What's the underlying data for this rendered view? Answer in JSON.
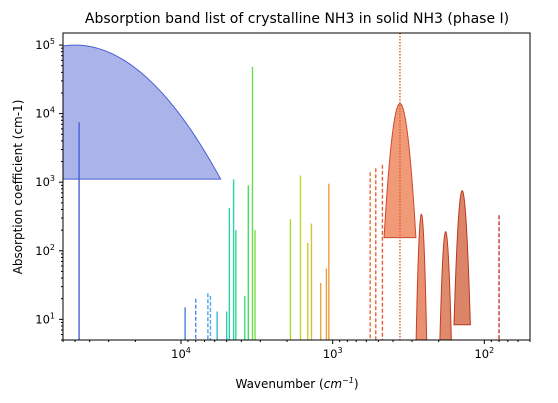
{
  "chart_data": {
    "type": "line",
    "title": "Absorption band list of crystalline NH3 in solid NH3 (phase I)",
    "xlabel_base": "Wavenumber (",
    "xlabel_unit_base": "cm",
    "xlabel_unit_exp": "−1",
    "xlabel_close": ")",
    "ylabel": "Absorption coefficient (cm-1)",
    "x_scale": "log-reversed",
    "y_scale": "log",
    "xlim": [
      60000,
      50
    ],
    "ylim": [
      5,
      150000
    ],
    "x_ticks": [
      {
        "value": 10000,
        "base": "10",
        "exp": "4"
      },
      {
        "value": 1000,
        "base": "10",
        "exp": "3"
      },
      {
        "value": 100,
        "base": "10",
        "exp": "2"
      }
    ],
    "y_ticks": [
      {
        "value": 10,
        "base": "10",
        "exp": "1"
      },
      {
        "value": 100,
        "base": "10",
        "exp": "2"
      },
      {
        "value": 1000,
        "base": "10",
        "exp": "3"
      },
      {
        "value": 10000,
        "base": "10",
        "exp": "4"
      },
      {
        "value": 100000,
        "base": "10",
        "exp": "5"
      }
    ],
    "grid": false,
    "legend": "none",
    "bands": [
      {
        "center": 50000,
        "peak": 100000,
        "width": 0.32,
        "color": "#4a5fd6",
        "fill": "#aab4e8",
        "shape": "band"
      },
      {
        "center": 47000,
        "peak": 7500,
        "color": "#4a5fd6",
        "shape": "solid"
      },
      {
        "center": 9400,
        "peak": 15,
        "color": "#4a7fe0",
        "shape": "solid"
      },
      {
        "center": 8000,
        "peak": 20,
        "color": "#4a8ae6",
        "shape": "dashed"
      },
      {
        "center": 6650,
        "peak": 24,
        "color": "#4aa0e6",
        "shape": "dashed"
      },
      {
        "center": 6400,
        "peak": 22,
        "color": "#4aa8e6",
        "shape": "dashed"
      },
      {
        "center": 5780,
        "peak": 13,
        "color": "#3ab6dc",
        "shape": "solid"
      },
      {
        "center": 5000,
        "peak": 13,
        "color": "#2cc8b8",
        "shape": "solid"
      },
      {
        "center": 4800,
        "peak": 420,
        "color": "#2cd0a8",
        "shape": "solid"
      },
      {
        "center": 4500,
        "peak": 1100,
        "color": "#2cd6a0",
        "shape": "solid"
      },
      {
        "center": 4350,
        "peak": 200,
        "color": "#30d890",
        "shape": "solid"
      },
      {
        "center": 3800,
        "peak": 22,
        "color": "#40dc70",
        "shape": "solid"
      },
      {
        "center": 3600,
        "peak": 900,
        "color": "#48de60",
        "shape": "solid"
      },
      {
        "center": 3380,
        "peak": 48000,
        "color": "#6ae050",
        "shape": "solid"
      },
      {
        "center": 3250,
        "peak": 200,
        "color": "#78e048",
        "shape": "solid"
      },
      {
        "center": 1900,
        "peak": 290,
        "color": "#a8dc30",
        "shape": "solid"
      },
      {
        "center": 1630,
        "peak": 1250,
        "color": "#b8d830",
        "shape": "solid"
      },
      {
        "center": 1460,
        "peak": 130,
        "color": "#c8d030",
        "shape": "solid"
      },
      {
        "center": 1380,
        "peak": 250,
        "color": "#d6c040",
        "shape": "solid"
      },
      {
        "center": 1200,
        "peak": 34,
        "color": "#e8a840",
        "shape": "solid"
      },
      {
        "center": 1100,
        "peak": 55,
        "color": "#eba040",
        "shape": "solid"
      },
      {
        "center": 1060,
        "peak": 950,
        "color": "#ee9a3e",
        "shape": "solid"
      },
      {
        "center": 566,
        "peak": 1400,
        "color": "#e8703a",
        "shape": "dashed"
      },
      {
        "center": 520,
        "peak": 1600,
        "color": "#e46838",
        "shape": "dashed"
      },
      {
        "center": 470,
        "peak": 1800,
        "color": "#e06236",
        "shape": "dashed"
      },
      {
        "center": 360,
        "peak": 14000,
        "width": 0.035,
        "color": "#cc4a30",
        "fill": "#f09a78",
        "shape": "band"
      },
      {
        "center": 360,
        "peak": 150000,
        "color": "#d86030",
        "shape": "dotted"
      },
      {
        "center": 260,
        "peak": 340,
        "width": 0.012,
        "color": "#c04028",
        "fill": "#e89070",
        "shape": "band"
      },
      {
        "center": 180,
        "peak": 190,
        "width": 0.014,
        "color": "#bc3c26",
        "fill": "#e08a6c",
        "shape": "band"
      },
      {
        "center": 140,
        "peak": 750,
        "width": 0.018,
        "color": "#b83824",
        "fill": "#dc8468",
        "shape": "band"
      },
      {
        "center": 80,
        "peak": 330,
        "color": "#c03826",
        "shape": "dashed"
      }
    ]
  }
}
